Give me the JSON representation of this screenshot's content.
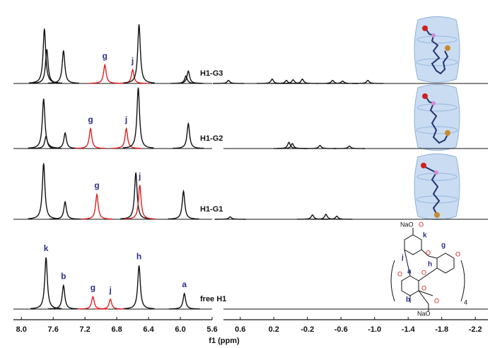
{
  "chart_data": {
    "type": "nmr",
    "xlabel": "f1 (ppm)",
    "xlim": [
      [
        8.1,
        5.6
      ],
      [
        0.8,
        -2.35
      ]
    ],
    "xticks": [
      {
        "value": 8,
        "label": "8.0"
      },
      7.6,
      7.2,
      6.8,
      6.4,
      {
        "value": 6,
        "label": "6.0"
      },
      5.6,
      0.6,
      0.2,
      -0.2,
      -0.6,
      {
        "value": -1,
        "label": "-1.0"
      },
      -1.4,
      -1.8,
      -2.2
    ],
    "ylim": [
      0,
      100
    ],
    "label_color": "#2b2f8f",
    "series": [
      {
        "name": "H1-G3",
        "x": [
          7.71,
          7.68,
          7.47,
          6.95,
          6.6,
          6.52,
          5.9,
          5.93,
          0.74,
          0.22,
          0.05,
          -0.03,
          -0.14,
          -0.5,
          -0.62,
          -0.92
        ],
        "values": [
          88,
          55,
          53,
          30,
          22,
          95,
          20,
          12,
          5,
          7,
          5,
          6,
          7,
          5,
          4,
          5
        ],
        "colors": [
          "#111111",
          "#111111",
          "#111111",
          "#e02020",
          "#e02020",
          "#111111",
          "#111111",
          "#111111",
          "#111111",
          "#111111",
          "#111111",
          "#111111",
          "#111111",
          "#111111",
          "#111111",
          "#111111"
        ],
        "peak_labels": [
          null,
          null,
          null,
          "g",
          "j",
          null,
          null,
          null,
          null,
          null,
          null,
          null,
          null,
          null,
          null,
          null
        ]
      },
      {
        "name": "H1-G2",
        "x": [
          7.72,
          7.69,
          7.45,
          7.13,
          6.68,
          6.53,
          5.9,
          0.02,
          -0.02,
          -0.35,
          -0.7
        ],
        "values": [
          80,
          20,
          25,
          32,
          32,
          98,
          40,
          10,
          8,
          5,
          4
        ],
        "colors": [
          "#111111",
          "#111111",
          "#111111",
          "#e02020",
          "#e02020",
          "#111111",
          "#111111",
          "#111111",
          "#111111",
          "#111111",
          "#111111"
        ],
        "peak_labels": [
          null,
          null,
          null,
          "g",
          "j",
          null,
          null,
          null,
          null,
          null,
          null
        ]
      },
      {
        "name": "H1-G1",
        "x": [
          7.72,
          7.45,
          7.05,
          6.56,
          6.51,
          5.96,
          0.72,
          -0.26,
          -0.42,
          -0.55
        ],
        "values": [
          90,
          28,
          40,
          75,
          55,
          45,
          4,
          7,
          8,
          5
        ],
        "colors": [
          "#111111",
          "#111111",
          "#e02020",
          "#111111",
          "#e02020",
          "#111111",
          "#111111",
          "#111111",
          "#111111",
          "#111111"
        ],
        "peak_labels": [
          null,
          null,
          "g",
          null,
          "j",
          null,
          null,
          null,
          null,
          null
        ]
      },
      {
        "name": "free H1",
        "x": [
          7.69,
          7.47,
          7.1,
          6.88,
          6.52,
          5.95
        ],
        "values": [
          83,
          38,
          20,
          16,
          70,
          25
        ],
        "colors": [
          "#111111",
          "#111111",
          "#e02020",
          "#e02020",
          "#111111",
          "#111111"
        ],
        "peak_labels": [
          "k",
          "b",
          "g",
          "j",
          "h",
          "a"
        ]
      }
    ],
    "structure": {
      "labels": [
        "NaO",
        "O",
        "k",
        "j",
        "O",
        "g",
        "h",
        "O",
        "O",
        "a",
        "O",
        "O",
        "b",
        "4",
        "O",
        "NaO"
      ]
    }
  }
}
